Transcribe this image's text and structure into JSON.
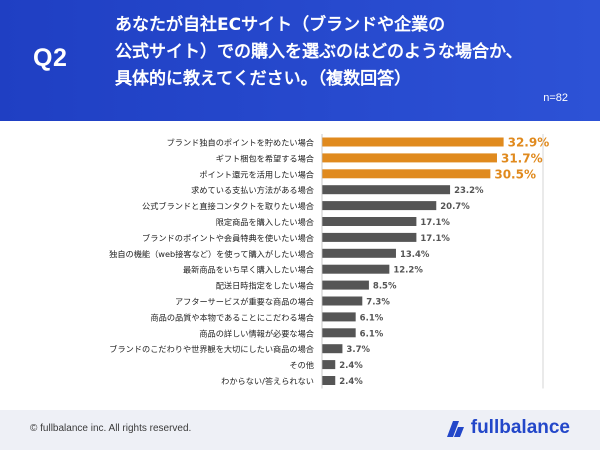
{
  "header": {
    "q_label": "Q2",
    "question": "あなたが自社ECサイト（ブランドや企業の\n公式サイト）での購入を選ぶのはどのような場合か、\n具体的に教えてください。（複数回答）",
    "sample": "n=82"
  },
  "footer": {
    "copyright": "© fullbalance inc. All rights reserved.",
    "logo_text": "fullbalance"
  },
  "colors": {
    "header_bg": "#2a4bd0",
    "highlight_bar": "#e08a1e",
    "normal_bar": "#555555",
    "highlight_text": "#e08a1e",
    "normal_text": "#555555"
  },
  "chart_data": {
    "type": "bar",
    "orientation": "horizontal",
    "unit": "%",
    "categories": [
      "ブランド独自のポイントを貯めたい場合",
      "ギフト梱包を希望する場合",
      "ポイント還元を活用したい場合",
      "求めている支払い方法がある場合",
      "公式ブランドと直接コンタクトを取りたい場合",
      "限定商品を購入したい場合",
      "ブランドのポイントや会員特典を使いたい場合",
      "独自の機能（web接客など）を使って購入がしたい場合",
      "最新商品をいち早く購入したい場合",
      "配送日時指定をしたい場合",
      "アフターサービスが重要な商品の場合",
      "商品の品質や本物であることにこだわる場合",
      "商品の詳しい情報が必要な場合",
      "ブランドのこだわりや世界観を大切にしたい商品の場合",
      "その他",
      "わからない/答えられない"
    ],
    "values": [
      32.9,
      31.7,
      30.5,
      23.2,
      20.7,
      17.1,
      17.1,
      13.4,
      12.2,
      8.5,
      7.3,
      6.1,
      6.1,
      3.7,
      2.4,
      2.4
    ],
    "value_labels": [
      "32.9%",
      "31.7%",
      "30.5%",
      "23.2%",
      "20.7%",
      "17.1%",
      "17.1%",
      "13.4%",
      "12.2%",
      "8.5%",
      "7.3%",
      "6.1%",
      "6.1%",
      "3.7%",
      "2.4%",
      "2.4%"
    ],
    "highlighted_top": 3,
    "xlim": [
      0,
      35
    ],
    "grid": false
  }
}
